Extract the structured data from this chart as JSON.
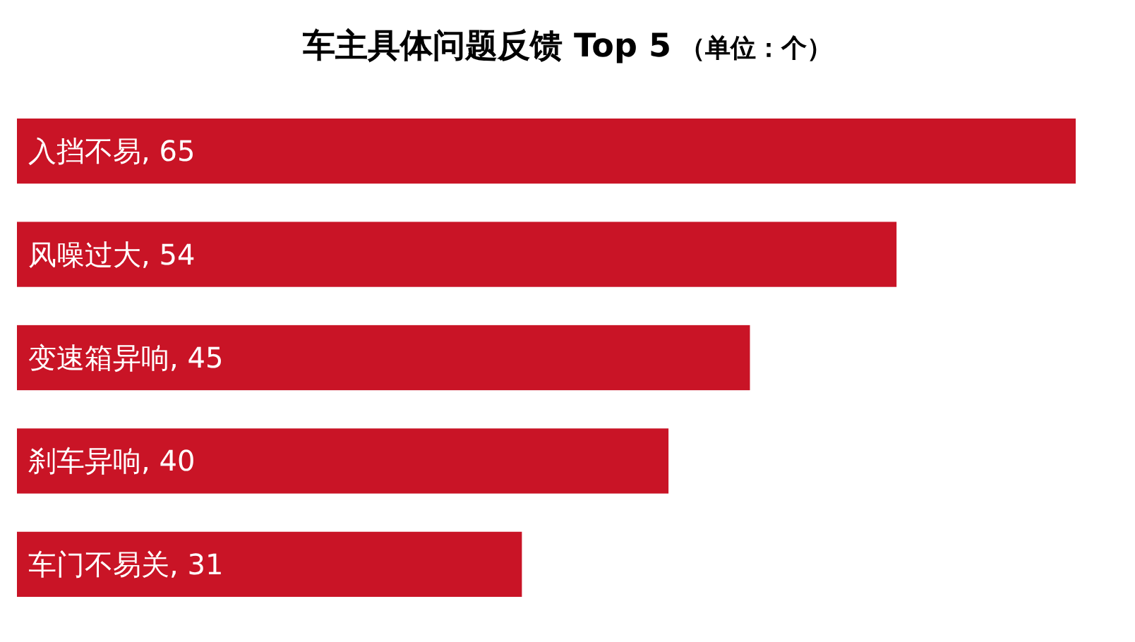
{
  "chart_data": {
    "type": "bar",
    "orientation": "horizontal",
    "title": "车主具体问题反馈 Top 5",
    "subtitle": "（单位：个）",
    "categories": [
      "入挡不易",
      "风噪过大",
      "变速箱异响",
      "刹车异响",
      "车门不易关"
    ],
    "values": [
      65,
      54,
      45,
      40,
      31
    ],
    "value_labels": [
      ", 65",
      ", 54",
      ", 45",
      ", 40",
      ", 31"
    ],
    "color": "#c91426"
  }
}
